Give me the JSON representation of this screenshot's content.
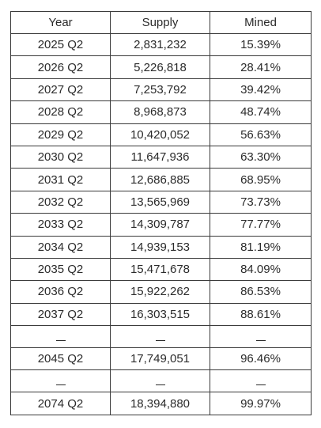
{
  "table": {
    "headers": {
      "year": "Year",
      "supply": "Supply",
      "mined": "Mined"
    },
    "rows": [
      {
        "year": "2025 Q2",
        "supply": "2,831,232",
        "mined": "15.39%"
      },
      {
        "year": "2026 Q2",
        "supply": "5,226,818",
        "mined": "28.41%"
      },
      {
        "year": "2027 Q2",
        "supply": "7,253,792",
        "mined": "39.42%"
      },
      {
        "year": "2028 Q2",
        "supply": "8,968,873",
        "mined": "48.74%"
      },
      {
        "year": "2029 Q2",
        "supply": "10,420,052",
        "mined": "56.63%"
      },
      {
        "year": "2030 Q2",
        "supply": "11,647,936",
        "mined": "63.30%"
      },
      {
        "year": "2031 Q2",
        "supply": "12,686,885",
        "mined": "68.95%"
      },
      {
        "year": "2032 Q2",
        "supply": "13,565,969",
        "mined": "73.73%"
      },
      {
        "year": "2033 Q2",
        "supply": "14,309,787",
        "mined": "77.77%"
      },
      {
        "year": "2034 Q2",
        "supply": "14,939,153",
        "mined": "81.19%"
      },
      {
        "year": "2035 Q2",
        "supply": "15,471,678",
        "mined": "84.09%"
      },
      {
        "year": "2036 Q2",
        "supply": "15,922,262",
        "mined": "86.53%"
      },
      {
        "year": "2037 Q2",
        "supply": "16,303,515",
        "mined": "88.61%"
      },
      {
        "year": "2045 Q2",
        "supply": "17,749,051",
        "mined": "96.46%"
      },
      {
        "year": "2074 Q2",
        "supply": "18,394,880",
        "mined": "99.97%"
      }
    ]
  }
}
